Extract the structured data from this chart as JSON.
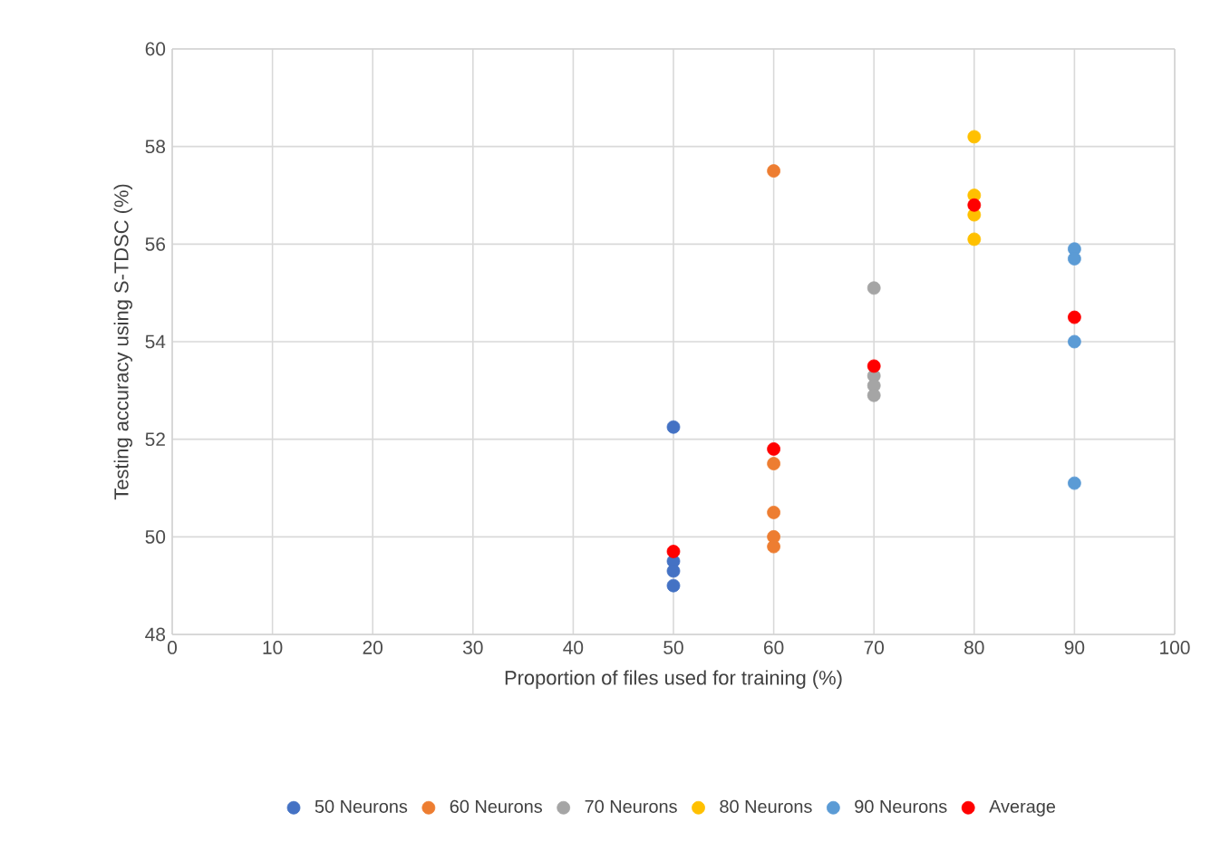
{
  "chart_data": {
    "type": "scatter",
    "xlabel": "Proportion of files used for training (%)",
    "ylabel": "Testing accuracy using S-TDSC (%)",
    "xlim": [
      0,
      100
    ],
    "xticks": [
      0,
      10,
      20,
      30,
      40,
      50,
      60,
      70,
      80,
      90,
      100
    ],
    "ylim": [
      48,
      60
    ],
    "yticks": [
      48,
      50,
      52,
      54,
      56,
      58,
      60
    ],
    "grid": true,
    "legend": "bottom",
    "marker": "circle",
    "series": [
      {
        "name": "50 Neurons",
        "color": "#4472c4",
        "x": [
          50,
          50,
          50,
          50
        ],
        "values": [
          52.25,
          49.5,
          49.3,
          49.0
        ]
      },
      {
        "name": "60 Neurons",
        "color": "#ed7d31",
        "x": [
          60,
          60,
          60,
          60,
          60
        ],
        "values": [
          57.5,
          51.5,
          50.5,
          50.0,
          49.8
        ]
      },
      {
        "name": "70 Neurons",
        "color": "#a5a5a5",
        "x": [
          70,
          70,
          70,
          70
        ],
        "values": [
          55.1,
          53.3,
          53.1,
          52.9
        ]
      },
      {
        "name": "80 Neurons",
        "color": "#ffc000",
        "x": [
          80,
          80,
          80,
          80
        ],
        "values": [
          58.2,
          57.0,
          56.6,
          56.1
        ]
      },
      {
        "name": "90 Neurons",
        "color": "#5b9bd5",
        "x": [
          90,
          90,
          90,
          90
        ],
        "values": [
          55.9,
          55.7,
          54.0,
          51.1
        ]
      },
      {
        "name": "Average",
        "color": "#ff0000",
        "x": [
          50,
          60,
          70,
          80,
          90
        ],
        "values": [
          49.7,
          51.8,
          53.5,
          56.8,
          54.5
        ]
      }
    ]
  }
}
